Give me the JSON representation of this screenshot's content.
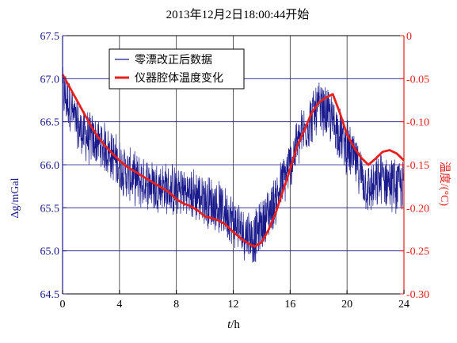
{
  "chart_data": {
    "type": "line",
    "title": "2013年12月2日18:00:44开始",
    "xlabel": "t/h",
    "ylabel": "Δg/mGal",
    "ylabel_right": "温度/(°C)",
    "xlim": [
      0,
      24
    ],
    "ylim": [
      64.5,
      67.5
    ],
    "ylim_right": [
      -0.3,
      0.0
    ],
    "x_ticks": [
      "0",
      "4",
      "8",
      "12",
      "16",
      "20",
      "24"
    ],
    "y_ticks_left": [
      "64.5",
      "65.0",
      "65.5",
      "66.0",
      "66.5",
      "67.0",
      "67.5"
    ],
    "y_ticks_right": [
      "-0.30",
      "-0.25",
      "-0.20",
      "-0.15",
      "-0.10",
      "-0.05",
      "0"
    ],
    "grid": true,
    "legend_position": "top-left",
    "colors": {
      "gravity": "#1a1a8c",
      "temperature": "#e8201c",
      "grid": "#333333"
    },
    "series": [
      {
        "name": "零漂改正后数据",
        "axis": "left",
        "x": [
          0,
          0.5,
          1,
          1.5,
          2,
          2.5,
          3,
          3.5,
          4,
          4.5,
          5,
          5.5,
          6,
          6.5,
          7,
          7.5,
          8,
          8.5,
          9,
          9.5,
          10,
          10.5,
          11,
          11.5,
          12,
          12.5,
          13,
          13.5,
          14,
          14.5,
          15,
          15.5,
          16,
          16.5,
          17,
          17.5,
          18,
          18.5,
          19,
          19.5,
          20,
          20.5,
          21,
          21.5,
          22,
          22.5,
          23,
          23.5,
          24
        ],
        "values": [
          66.85,
          66.7,
          66.45,
          66.35,
          66.3,
          66.25,
          66.2,
          66.1,
          66.0,
          65.9,
          65.85,
          65.8,
          65.8,
          65.75,
          65.75,
          65.7,
          65.7,
          65.7,
          65.65,
          65.65,
          65.6,
          65.55,
          65.5,
          65.45,
          65.35,
          65.25,
          65.2,
          65.15,
          65.3,
          65.45,
          65.6,
          65.8,
          66.0,
          66.25,
          66.4,
          66.55,
          66.65,
          66.6,
          66.5,
          66.35,
          66.2,
          66.05,
          65.9,
          65.7,
          65.75,
          65.85,
          65.8,
          65.75,
          65.75
        ]
      },
      {
        "name": "仪器腔体温度变化",
        "axis": "right",
        "x": [
          0,
          0.5,
          1,
          1.5,
          2,
          2.5,
          3,
          3.5,
          4,
          4.5,
          5,
          5.5,
          6,
          6.5,
          7,
          7.5,
          8,
          8.5,
          9,
          9.5,
          10,
          10.5,
          11,
          11.5,
          12,
          12.5,
          13,
          13.5,
          14,
          14.5,
          15,
          15.5,
          16,
          16.5,
          17,
          17.5,
          18,
          18.5,
          19,
          19.5,
          20,
          20.5,
          21,
          21.5,
          22,
          22.5,
          23,
          23.5,
          24
        ],
        "values": [
          -0.045,
          -0.06,
          -0.075,
          -0.09,
          -0.105,
          -0.118,
          -0.128,
          -0.137,
          -0.145,
          -0.152,
          -0.157,
          -0.162,
          -0.167,
          -0.172,
          -0.177,
          -0.182,
          -0.19,
          -0.195,
          -0.198,
          -0.203,
          -0.21,
          -0.212,
          -0.215,
          -0.22,
          -0.228,
          -0.235,
          -0.241,
          -0.245,
          -0.24,
          -0.225,
          -0.205,
          -0.18,
          -0.155,
          -0.128,
          -0.11,
          -0.09,
          -0.078,
          -0.072,
          -0.068,
          -0.09,
          -0.115,
          -0.13,
          -0.142,
          -0.15,
          -0.143,
          -0.135,
          -0.133,
          -0.137,
          -0.145
        ]
      }
    ]
  }
}
